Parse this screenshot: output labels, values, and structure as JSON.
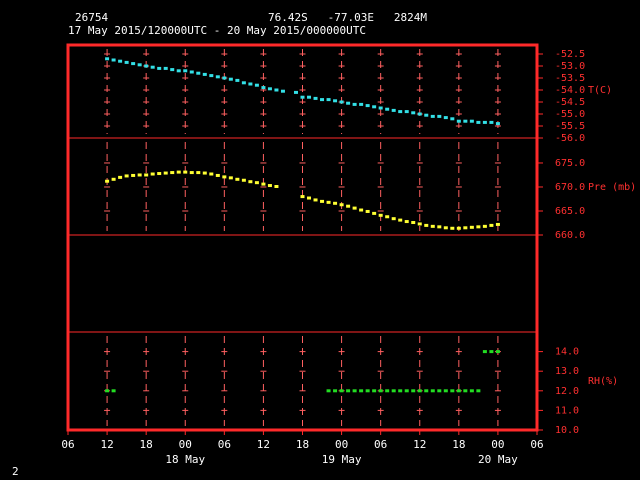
{
  "header": {
    "station": "26754",
    "location": "76.42S   -77.03E   2824M",
    "period": "17 May 2015/120000UTC - 20 May 2015/000000UTC",
    "page": "2"
  },
  "chart_data": [
    {
      "type": "scatter",
      "ylabel": "T(C)",
      "xlim": [
        6,
        78
      ],
      "ylim": [
        -56.0,
        -52.125
      ],
      "yticks": [
        -52.5,
        {
          "value": -53.0,
          "label": "-53.0"
        },
        -53.5,
        {
          "value": -54.0,
          "label": "-54.0"
        },
        -54.5,
        {
          "value": -55.0,
          "label": "-55.0"
        },
        -55.5,
        {
          "value": -56.0,
          "label": "-56.0"
        }
      ],
      "x": [
        12,
        13,
        14,
        15,
        16,
        17,
        18,
        19,
        20,
        21,
        22,
        23,
        24,
        25,
        26,
        27,
        28,
        29,
        30,
        31,
        32,
        33,
        34,
        35,
        36,
        37,
        38,
        39,
        40,
        41,
        42,
        43,
        44,
        45,
        46,
        47,
        48,
        49,
        50,
        51,
        52,
        53,
        54,
        55,
        56,
        57,
        58,
        59,
        60,
        61,
        62,
        63,
        64,
        65,
        66,
        67,
        68,
        69,
        70,
        71,
        72
      ],
      "series": [
        {
          "color": "#33e0e6",
          "values": [
            -52.7,
            -52.75,
            -52.8,
            -52.85,
            -52.9,
            -52.95,
            -53.0,
            -53.05,
            -53.1,
            -53.1,
            -53.15,
            -53.2,
            -53.2,
            -53.25,
            -53.3,
            -53.35,
            -53.4,
            -53.45,
            -53.5,
            -53.55,
            -53.6,
            -53.7,
            -53.75,
            -53.8,
            -53.9,
            -53.95,
            -54.0,
            -54.05,
            null,
            -54.1,
            -54.3,
            -54.3,
            -54.35,
            -54.4,
            -54.4,
            -54.45,
            -54.5,
            -54.55,
            -54.6,
            -54.6,
            -54.65,
            -54.7,
            -54.75,
            -54.8,
            -54.85,
            -54.9,
            -54.9,
            -54.95,
            -55.0,
            -55.05,
            -55.1,
            -55.1,
            -55.15,
            -55.2,
            -55.3,
            -55.3,
            -55.3,
            -55.35,
            -55.35,
            -55.35,
            -55.4
          ]
        }
      ]
    },
    {
      "type": "scatter",
      "ylabel": "Pre (mb)",
      "xlim": [
        6,
        78
      ],
      "ylim": [
        660.0,
        680.2
      ],
      "yticks": [
        {
          "value": 675,
          "label": "675.0"
        },
        {
          "value": 670,
          "label": "670.0"
        },
        {
          "value": 665,
          "label": "665.0"
        },
        {
          "value": 660,
          "label": "660.0"
        }
      ],
      "x": [
        12,
        13,
        14,
        15,
        16,
        17,
        18,
        19,
        20,
        21,
        22,
        23,
        24,
        25,
        26,
        27,
        28,
        29,
        30,
        31,
        32,
        33,
        34,
        35,
        36,
        37,
        38,
        39,
        40,
        41,
        42,
        43,
        44,
        45,
        46,
        47,
        48,
        49,
        50,
        51,
        52,
        53,
        54,
        55,
        56,
        57,
        58,
        59,
        60,
        61,
        62,
        63,
        64,
        65,
        66,
        67,
        68,
        69,
        70,
        71,
        72
      ],
      "series": [
        {
          "color": "#ffff33",
          "values": [
            671.2,
            671.6,
            672.0,
            672.3,
            672.4,
            672.5,
            672.5,
            672.7,
            672.8,
            672.9,
            673.0,
            673.1,
            673.1,
            673.0,
            673.0,
            672.9,
            672.7,
            672.4,
            672.1,
            671.9,
            671.6,
            671.4,
            671.1,
            670.9,
            670.6,
            670.3,
            670.1,
            null,
            null,
            null,
            668.0,
            667.7,
            667.3,
            667.0,
            666.8,
            666.6,
            666.3,
            666.0,
            665.6,
            665.2,
            664.9,
            664.5,
            664.1,
            663.8,
            663.4,
            663.1,
            662.8,
            662.6,
            662.3,
            662.0,
            661.8,
            661.7,
            661.5,
            661.4,
            661.4,
            661.5,
            661.6,
            661.7,
            661.8,
            662.0,
            662.2
          ]
        }
      ]
    },
    {
      "type": "scatter",
      "ylabel": "RH(%)",
      "xlim": [
        6,
        78
      ],
      "ylim": [
        10.0,
        15.0
      ],
      "yticks": [
        {
          "value": 14,
          "label": "14.0"
        },
        {
          "value": 13,
          "label": "13.0"
        },
        {
          "value": 12,
          "label": "12.0"
        },
        {
          "value": 11,
          "label": "11.0"
        },
        {
          "value": 10,
          "label": "10.0"
        }
      ],
      "xticks": [
        {
          "value": 6,
          "label": "06"
        },
        12,
        18,
        {
          "value": 24,
          "label": "00"
        },
        {
          "value": 30,
          "label": "06"
        },
        {
          "value": 36,
          "label": "12"
        },
        {
          "value": 42,
          "label": "18"
        },
        {
          "value": 48,
          "label": "00"
        },
        {
          "value": 54,
          "label": "06"
        },
        {
          "value": 60,
          "label": "12"
        },
        {
          "value": 66,
          "label": "18"
        },
        {
          "value": 72,
          "label": "00"
        },
        {
          "value": 78,
          "label": "06"
        }
      ],
      "date_labels": [
        {
          "value": 24,
          "label": "18 May"
        },
        {
          "value": 48,
          "label": "19 May"
        },
        {
          "value": 72,
          "label": "20 May"
        }
      ],
      "x": [
        12,
        13,
        14,
        15,
        16,
        17,
        18,
        19,
        20,
        21,
        22,
        23,
        24,
        25,
        26,
        27,
        28,
        29,
        30,
        31,
        32,
        33,
        34,
        35,
        36,
        37,
        38,
        39,
        40,
        41,
        42,
        43,
        44,
        45,
        46,
        47,
        48,
        49,
        50,
        51,
        52,
        53,
        54,
        55,
        56,
        57,
        58,
        59,
        60,
        61,
        62,
        63,
        64,
        65,
        66,
        67,
        68,
        69,
        70,
        71,
        72
      ],
      "series": [
        {
          "color": "#22dd22",
          "values": [
            12,
            12,
            10,
            10,
            10,
            10,
            10,
            10,
            10,
            10,
            10,
            10,
            10,
            10,
            10,
            10,
            10,
            10,
            10,
            10,
            10,
            10,
            10,
            10,
            10,
            10,
            10,
            10,
            null,
            null,
            10,
            10,
            10,
            10,
            12,
            12,
            12,
            12,
            12,
            12,
            12,
            12,
            12,
            12,
            12,
            12,
            12,
            12,
            12,
            12,
            12,
            12,
            12,
            12,
            12,
            12,
            12,
            12,
            14,
            14,
            14
          ]
        }
      ]
    }
  ]
}
